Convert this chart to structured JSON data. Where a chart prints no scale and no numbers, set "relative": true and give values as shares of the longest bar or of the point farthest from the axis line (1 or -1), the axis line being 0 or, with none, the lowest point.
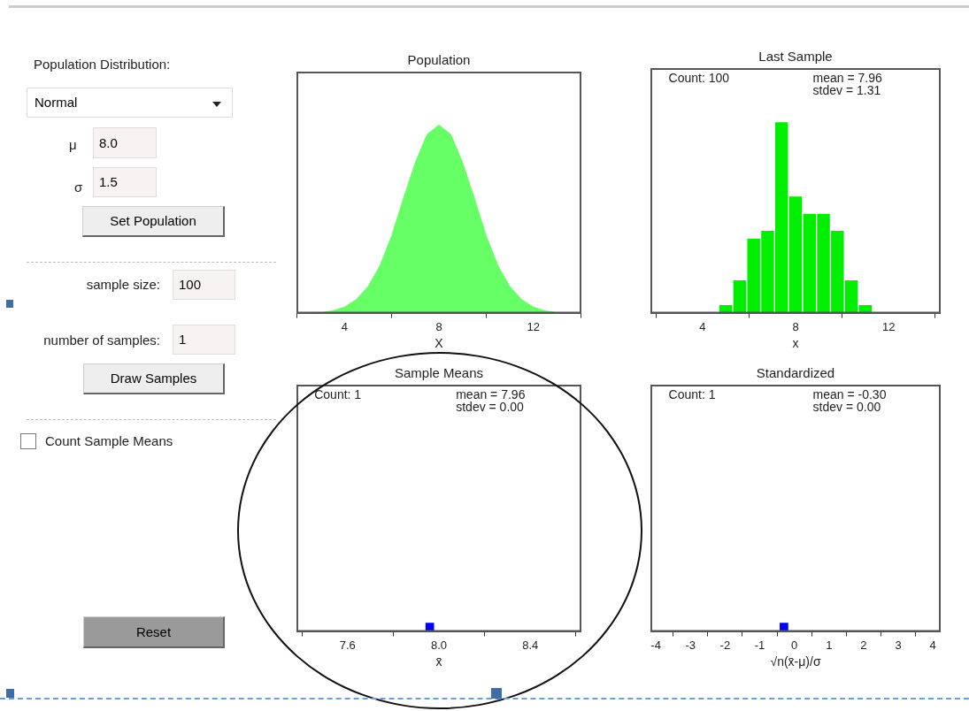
{
  "chart_data": [
    {
      "type": "other",
      "annotations": [
        "Population Distribution:",
        "Normal",
        "μ",
        "8.0",
        "σ",
        "1.5",
        "Set Population",
        "sample size:",
        "100",
        "number of samples:",
        "1",
        "Draw Samples",
        "Count Sample Means",
        "Reset"
      ]
    },
    {
      "type": "area",
      "title": "Population",
      "xlabel": "X",
      "relative": true,
      "x": [
        2,
        2.5,
        3,
        3.5,
        4,
        4.5,
        5,
        5.5,
        6,
        6.5,
        7,
        7.5,
        8,
        8.5,
        9,
        9.5,
        10,
        10.5,
        11,
        11.5,
        12,
        12.5,
        13,
        13.5,
        14
      ],
      "series": [
        {
          "color": "#66ff66",
          "values": [
            0,
            0,
            0,
            0.01,
            0.03,
            0.07,
            0.14,
            0.25,
            0.41,
            0.61,
            0.8,
            0.95,
            1,
            0.95,
            0.8,
            0.61,
            0.41,
            0.25,
            0.14,
            0.07,
            0.03,
            0.01,
            0,
            0,
            0
          ]
        }
      ],
      "xlim": [
        2,
        14
      ],
      "xticks": [
        4,
        8,
        12
      ]
    },
    {
      "type": "bar",
      "title": "Last Sample",
      "xlabel": "x",
      "relative": true,
      "x": [
        5,
        5.6,
        6.2,
        6.8,
        7.4,
        8,
        8.6,
        9.2,
        9.8,
        10.4,
        11
      ],
      "values": [
        0.04,
        0.17,
        0.39,
        0.43,
        1,
        0.61,
        0.52,
        0.52,
        0.43,
        0.17,
        0.04
      ],
      "color": "#00ee00",
      "xlim": [
        1.8,
        14.2
      ],
      "xticks": [
        4,
        8,
        12
      ],
      "annotations": [
        "Count: 100",
        "mean = 7.96",
        "stdev = 1.31"
      ]
    },
    {
      "type": "bar",
      "title": "Sample Means",
      "xlabel": "x̄",
      "relative": true,
      "x": [
        7.96
      ],
      "values": [
        1
      ],
      "color": "#0000ff",
      "xlim": [
        7.38,
        8.62
      ],
      "xticks": [
        7.6,
        {
          "value": 8,
          "label": "8.0"
        },
        8.4
      ],
      "annotations": [
        "Count: 1",
        "mean = 7.96",
        "stdev = 0.00"
      ]
    },
    {
      "type": "bar",
      "title": "Standardized",
      "xlabel": "√n(x̄-μ)/σ",
      "relative": true,
      "x": [
        -0.3
      ],
      "values": [
        1
      ],
      "color": "#0000ff",
      "xlim": [
        -4.13,
        4.2
      ],
      "xticks": [
        -4,
        -3,
        -2,
        -1,
        0,
        1,
        2,
        3,
        4
      ],
      "annotations": [
        "Count: 1",
        "mean = -0.30",
        "stdev = 0.00"
      ]
    }
  ]
}
